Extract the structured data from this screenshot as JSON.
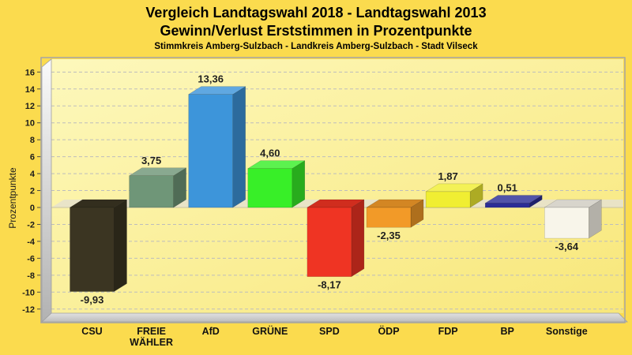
{
  "title": "Vergleich Landtagswahl 2018 - Landtagswahl 2013",
  "subtitle": "Gewinn/Verlust Erststimmen in Prozentpunkte",
  "caption": "Stimmkreis Amberg-Sulzbach - Landkreis Amberg-Sulzbach - Stadt Vilseck",
  "chart_data": {
    "type": "bar",
    "style": "3d-column",
    "categories": [
      "CSU",
      "FREIE WÄHLER",
      "AfD",
      "GRÜNE",
      "SPD",
      "ÖDP",
      "FDP",
      "BP",
      "Sonstige"
    ],
    "values": [
      -9.93,
      3.75,
      13.36,
      4.6,
      -8.17,
      -2.35,
      1.87,
      0.51,
      -3.64
    ],
    "value_labels": [
      "-9,93",
      "3,75",
      "13,36",
      "4,60",
      "-8,17",
      "-2,35",
      "1,87",
      "0,51",
      "-3,64"
    ],
    "bar_colors": [
      "#3b3522",
      "#6f9678",
      "#3d95da",
      "#38ef28",
      "#ef3423",
      "#f29a28",
      "#f0ee32",
      "#2b2d96",
      "#f8f5ea"
    ],
    "ylabel": "Prozentpunkte",
    "xlabel": "",
    "ylim": [
      -12,
      16
    ],
    "ytick_step": 2,
    "ytick_labels": [
      "-12",
      "-10",
      "-8",
      "-6",
      "-4",
      "-2",
      "0",
      "2",
      "4",
      "6",
      "8",
      "10",
      "12",
      "14",
      "16"
    ],
    "grid": "dashed",
    "legend": "none",
    "colors": {
      "page_background": "#fbdb4e",
      "plot_background_top": "#fdf8bc",
      "plot_background_bottom": "#f8e77a",
      "gridline": "#bdbdbd",
      "wall": "#c8c8c8",
      "zero_band": "#e8e3c9",
      "text": "#1c1c1c"
    }
  }
}
